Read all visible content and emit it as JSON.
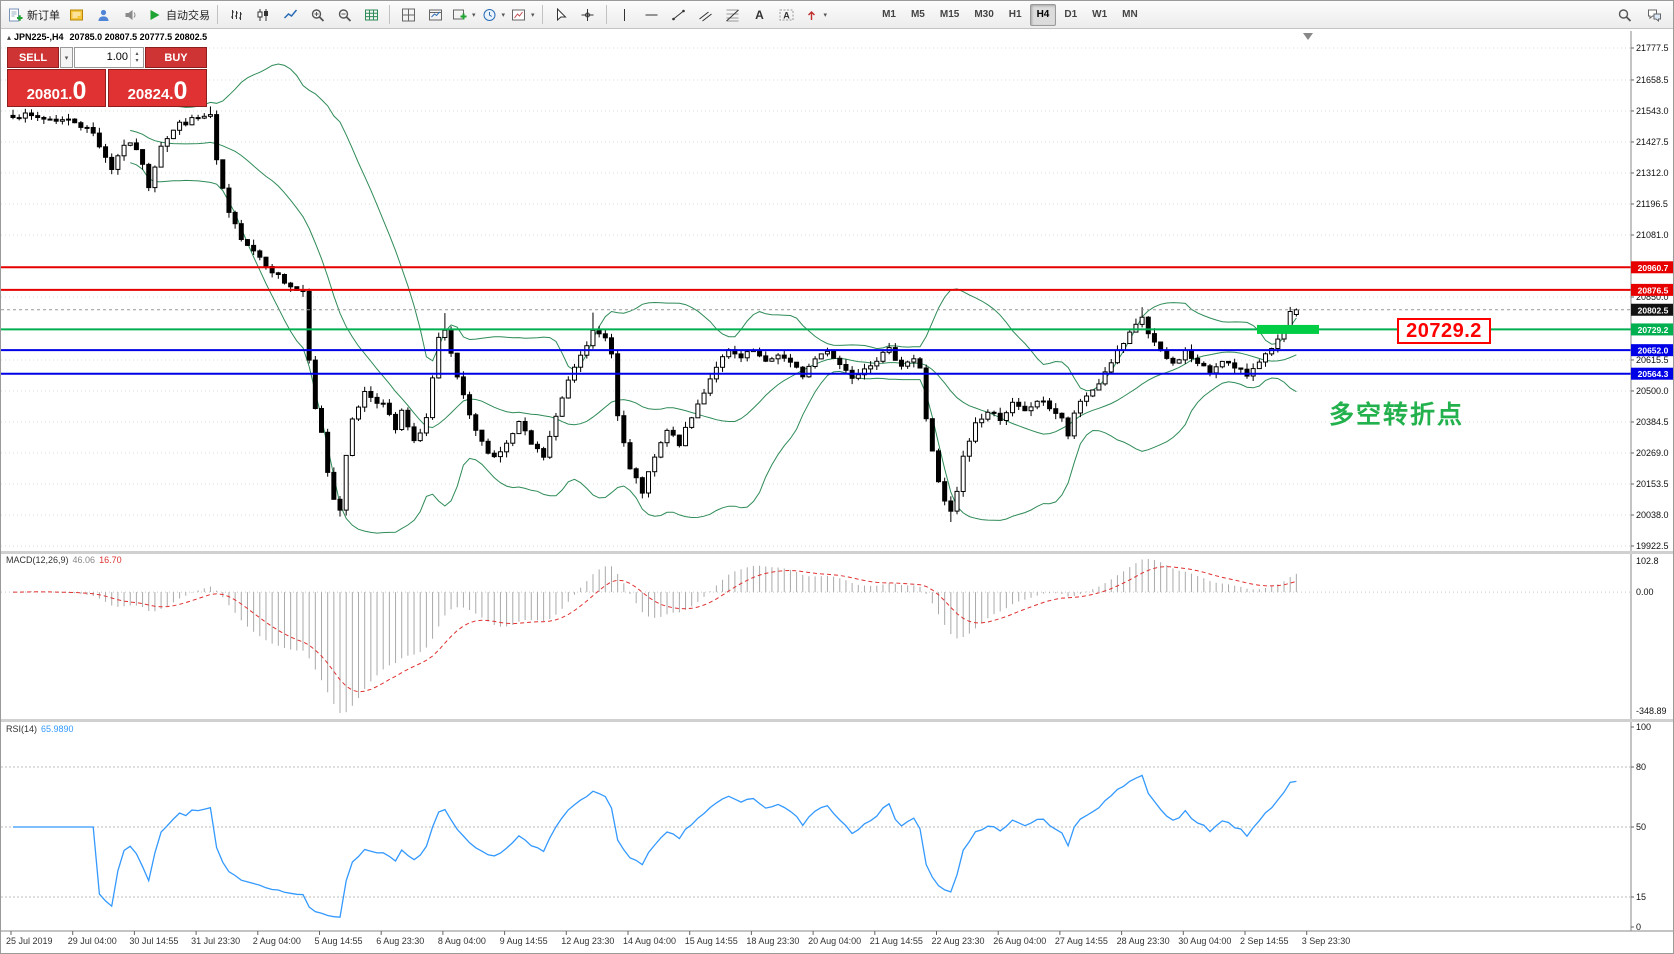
{
  "colors": {
    "red_line": "#e60000",
    "green_line": "#00b050",
    "blue_line": "#0000e6",
    "green_highlight": "#00cc44",
    "bollinger": "#2e8b57",
    "candle_up": "#ffffff",
    "candle_down": "#000000",
    "macd_hist": "#aaaaaa",
    "macd_signal": "#e03030",
    "rsi_line": "#3399ff",
    "annotation_red": "#ff0000",
    "turning_green": "#22b14c",
    "current_price_box": "#111111",
    "grid": "#dcdcdc"
  },
  "toolbar": {
    "new_order_label": "新订单",
    "autotrading_label": "自动交易",
    "timeframes": [
      "M1",
      "M5",
      "M15",
      "M30",
      "H1",
      "H4",
      "D1",
      "W1",
      "MN"
    ],
    "active_timeframe": "H4",
    "caret": "▾"
  },
  "chart": {
    "symbol_line": {
      "expand_icon": "▴",
      "symbol": "JPN225-,H4",
      "ohlc": "20785.0 20807.5 20777.5 20802.5"
    },
    "one_click": {
      "sell_label": "SELL",
      "buy_label": "BUY",
      "volume": "1.00",
      "sell_price": "20801.",
      "sell_price_big": "0",
      "buy_price": "20824.",
      "buy_price_big": "0"
    },
    "annotations": {
      "price_box": "20729.2",
      "turning_point": "多空转折点"
    },
    "levels": [
      {
        "value": 20960.7,
        "label": "20960.7",
        "color": "red"
      },
      {
        "value": 20876.5,
        "label": "20876.5",
        "color": "red"
      },
      {
        "value": 20729.2,
        "label": "20729.2",
        "color": "green",
        "highlight": true
      },
      {
        "value": 20652.0,
        "label": "20652.0",
        "color": "blue"
      },
      {
        "value": 20564.3,
        "label": "20564.3",
        "color": "blue"
      }
    ],
    "current_price": {
      "value": 20802.5,
      "label": "20802.5"
    },
    "axis_ticks": [
      "21777.5",
      "21658.5",
      "21543.0",
      "21427.5",
      "21312.0",
      "21196.5",
      "21081.0",
      "20850.0",
      "20615.5",
      "20500.0",
      "20384.5",
      "20269.0",
      "20153.5",
      "20038.0",
      "19922.5"
    ],
    "time_labels": [
      "25 Jul 2019",
      "29 Jul 04:00",
      "30 Jul 14:55",
      "31 Jul 23:30",
      "2 Aug 04:00",
      "5 Aug 14:55",
      "6 Aug 23:30",
      "8 Aug 04:00",
      "9 Aug 14:55",
      "12 Aug 23:30",
      "14 Aug 04:00",
      "15 Aug 14:55",
      "18 Aug 23:30",
      "20 Aug 04:00",
      "21 Aug 14:55",
      "22 Aug 23:30",
      "26 Aug 04:00",
      "27 Aug 14:55",
      "28 Aug 23:30",
      "30 Aug 04:00",
      "2 Sep 14:55",
      "3 Sep 23:30"
    ]
  },
  "macd": {
    "label": "MACD(12,26,9)",
    "value_main": "46.06",
    "value_signal": "16.70",
    "axis_top": "102.8",
    "axis_zero": "0.00",
    "axis_bottom": "-348.89",
    "params": {
      "fast": 12,
      "slow": 26,
      "signal": 9
    }
  },
  "rsi": {
    "label": "RSI(14)",
    "value": "65.9890",
    "period": 14,
    "axis": [
      {
        "label": "100",
        "value": 100
      },
      {
        "label": "80",
        "value": 80
      },
      {
        "label": "50",
        "value": 50
      },
      {
        "label": "15",
        "value": 15
      },
      {
        "label": "0",
        "value": 0
      }
    ],
    "levels": [
      80,
      50,
      15
    ]
  },
  "chart_data": {
    "type": "candlestick",
    "symbol": "JPN225-",
    "timeframe": "H4",
    "visible_price_range": [
      19922.5,
      21777.5
    ],
    "last_ohlc": {
      "open": 20785.0,
      "high": 20807.5,
      "low": 20777.5,
      "close": 20802.5
    },
    "bid": 20801.0,
    "ask": 20824.0,
    "candle_count": 209,
    "bollinger": {
      "period": 20,
      "deviation": 2
    },
    "price_anchors": [
      [
        0,
        21530
      ],
      [
        5,
        21515
      ],
      [
        10,
        21505
      ],
      [
        13,
        21460
      ],
      [
        16,
        21330
      ],
      [
        18,
        21420
      ],
      [
        20,
        21405
      ],
      [
        22,
        21265
      ],
      [
        24,
        21420
      ],
      [
        27,
        21495
      ],
      [
        30,
        21515
      ],
      [
        32,
        21525
      ],
      [
        33,
        21350
      ],
      [
        35,
        21155
      ],
      [
        37,
        21075
      ],
      [
        40,
        21000
      ],
      [
        42,
        20950
      ],
      [
        44,
        20905
      ],
      [
        46,
        20875
      ],
      [
        47,
        20860
      ],
      [
        48,
        20610
      ],
      [
        49,
        20430
      ],
      [
        50,
        20350
      ],
      [
        51,
        20200
      ],
      [
        52,
        20105
      ],
      [
        53,
        20065
      ],
      [
        54,
        20250
      ],
      [
        55,
        20400
      ],
      [
        57,
        20495
      ],
      [
        60,
        20450
      ],
      [
        62,
        20355
      ],
      [
        63,
        20420
      ],
      [
        65,
        20305
      ],
      [
        67,
        20400
      ],
      [
        69,
        20690
      ],
      [
        70,
        20715
      ],
      [
        72,
        20550
      ],
      [
        74,
        20400
      ],
      [
        76,
        20305
      ],
      [
        78,
        20255
      ],
      [
        80,
        20300
      ],
      [
        82,
        20380
      ],
      [
        84,
        20300
      ],
      [
        86,
        20255
      ],
      [
        88,
        20400
      ],
      [
        90,
        20545
      ],
      [
        92,
        20645
      ],
      [
        94,
        20715
      ],
      [
        96,
        20695
      ],
      [
        97,
        20650
      ],
      [
        98,
        20405
      ],
      [
        100,
        20205
      ],
      [
        102,
        20125
      ],
      [
        104,
        20250
      ],
      [
        106,
        20350
      ],
      [
        108,
        20305
      ],
      [
        110,
        20400
      ],
      [
        112,
        20500
      ],
      [
        114,
        20595
      ],
      [
        116,
        20645
      ],
      [
        118,
        20620
      ],
      [
        120,
        20650
      ],
      [
        122,
        20600
      ],
      [
        124,
        20640
      ],
      [
        126,
        20600
      ],
      [
        128,
        20560
      ],
      [
        130,
        20620
      ],
      [
        132,
        20655
      ],
      [
        134,
        20600
      ],
      [
        136,
        20555
      ],
      [
        138,
        20590
      ],
      [
        140,
        20620
      ],
      [
        142,
        20650
      ],
      [
        144,
        20600
      ],
      [
        146,
        20620
      ],
      [
        147,
        20580
      ],
      [
        148,
        20400
      ],
      [
        149,
        20280
      ],
      [
        150,
        20155
      ],
      [
        151,
        20085
      ],
      [
        152,
        20045
      ],
      [
        153,
        20125
      ],
      [
        154,
        20250
      ],
      [
        156,
        20380
      ],
      [
        158,
        20420
      ],
      [
        160,
        20400
      ],
      [
        162,
        20450
      ],
      [
        164,
        20420
      ],
      [
        166,
        20465
      ],
      [
        168,
        20440
      ],
      [
        170,
        20400
      ],
      [
        171,
        20325
      ],
      [
        172,
        20420
      ],
      [
        174,
        20480
      ],
      [
        176,
        20530
      ],
      [
        178,
        20610
      ],
      [
        180,
        20675
      ],
      [
        182,
        20740
      ],
      [
        183,
        20775
      ],
      [
        184,
        20715
      ],
      [
        186,
        20640
      ],
      [
        188,
        20600
      ],
      [
        190,
        20648
      ],
      [
        192,
        20600
      ],
      [
        194,
        20570
      ],
      [
        196,
        20620
      ],
      [
        198,
        20580
      ],
      [
        200,
        20560
      ],
      [
        202,
        20618
      ],
      [
        204,
        20648
      ],
      [
        206,
        20725
      ],
      [
        207,
        20785
      ],
      [
        208,
        20802.5
      ]
    ],
    "extremes": [
      [
        53,
        "l",
        20032
      ],
      [
        152,
        "l",
        20012
      ],
      [
        94,
        "h",
        20792
      ],
      [
        183,
        "h",
        20812
      ],
      [
        32,
        "h",
        21560
      ],
      [
        70,
        "h",
        20790
      ]
    ]
  }
}
